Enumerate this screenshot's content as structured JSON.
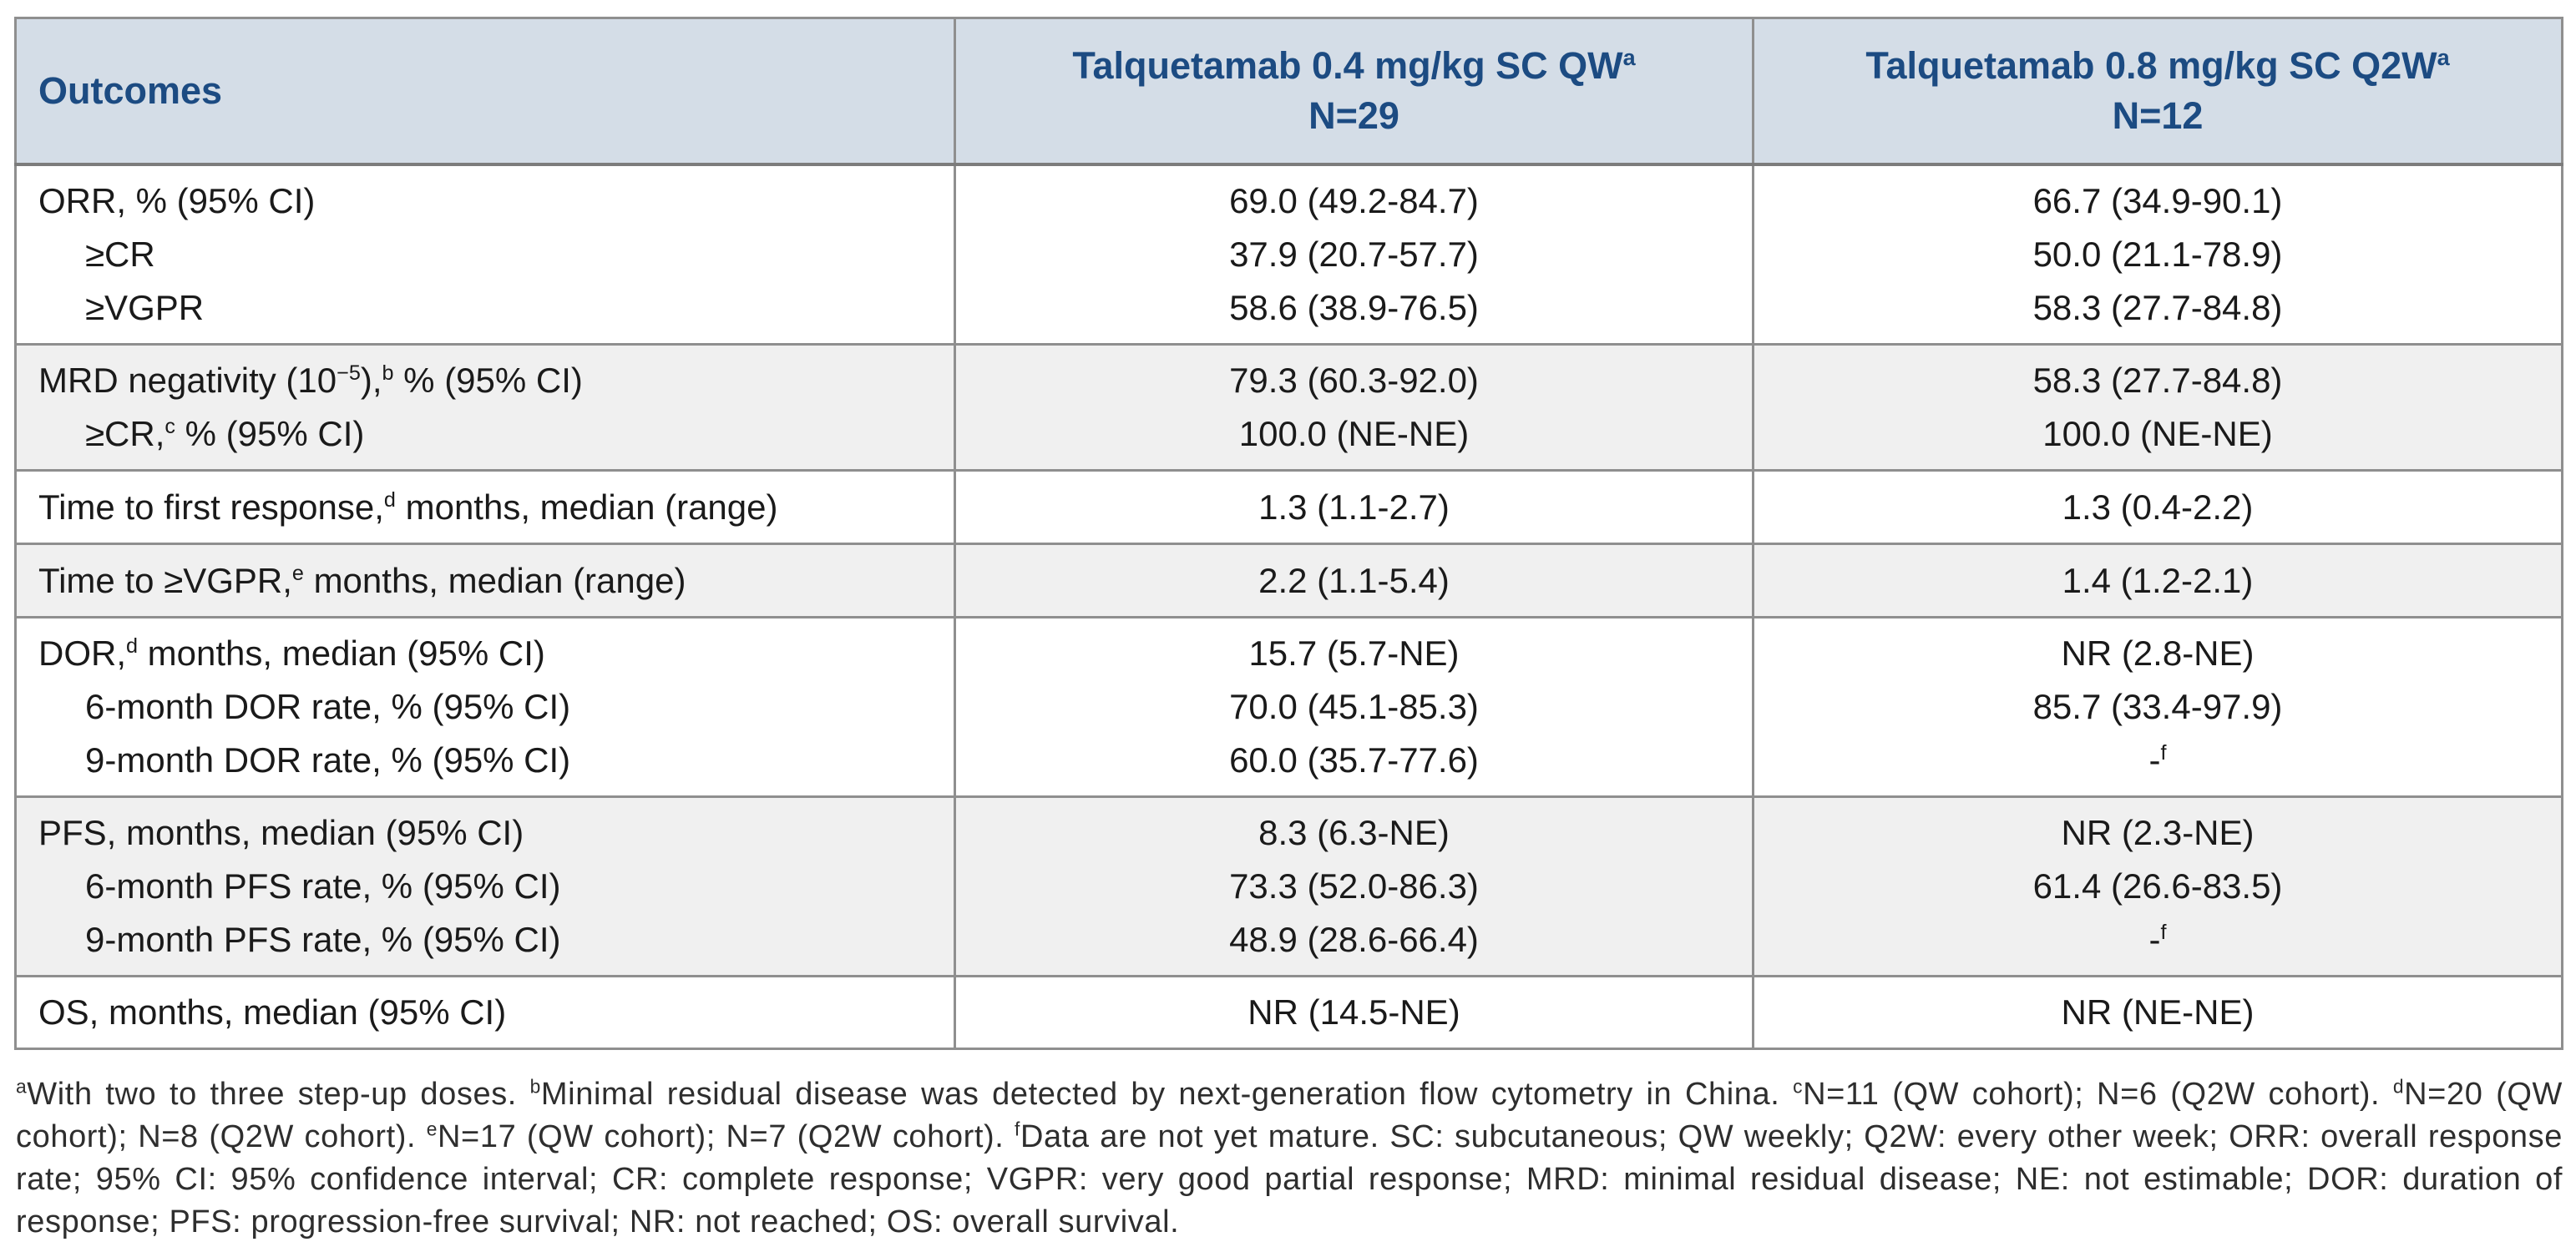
{
  "colors": {
    "header_bg": "#d4dde7",
    "header_text": "#1c4b82",
    "row_alt_bg": "#f0f0f0",
    "border": "#8f8f8f",
    "body_text": "#1a1a1a"
  },
  "table": {
    "columns": [
      {
        "label": "Outcomes"
      },
      {
        "line1_p1": "Talquetamab 0.4 mg/kg SC QW",
        "line1_s1": "a",
        "line2": "N=29"
      },
      {
        "line1_p1": "Talquetamab 0.8 mg/kg SC Q2W",
        "line1_s1": "a",
        "line2": "N=12"
      }
    ],
    "rows": [
      {
        "label": [
          {
            "p1": "ORR, % (95% CI)"
          },
          {
            "p1": "≥CR"
          },
          {
            "p1": "≥VGPR"
          }
        ],
        "qw": [
          {
            "p1": "69.0 (49.2-84.7)"
          },
          {
            "p1": "37.9 (20.7-57.7)"
          },
          {
            "p1": "58.6 (38.9-76.5)"
          }
        ],
        "q2w": [
          {
            "p1": "66.7 (34.9-90.1)"
          },
          {
            "p1": "50.0 (21.1-78.9)"
          },
          {
            "p1": "58.3 (27.7-84.8)"
          }
        ]
      },
      {
        "label": [
          {
            "p1": "MRD negativity (10",
            "s1": "−5",
            "p2": "),",
            "s2": "b",
            "p3": " % (95% CI)"
          },
          {
            "p1": "≥CR,",
            "s1": "c",
            "p2": " % (95% CI)"
          }
        ],
        "qw": [
          {
            "p1": "79.3 (60.3-92.0)"
          },
          {
            "p1": "100.0 (NE-NE)"
          }
        ],
        "q2w": [
          {
            "p1": "58.3 (27.7-84.8)"
          },
          {
            "p1": "100.0 (NE-NE)"
          }
        ]
      },
      {
        "label": [
          {
            "p1": "Time to first response,",
            "s1": "d",
            "p2": " months, median (range)"
          }
        ],
        "qw": [
          {
            "p1": "1.3 (1.1-2.7)"
          }
        ],
        "q2w": [
          {
            "p1": "1.3 (0.4-2.2)"
          }
        ]
      },
      {
        "label": [
          {
            "p1": "Time to ≥VGPR,",
            "s1": "e",
            "p2": " months, median (range)"
          }
        ],
        "qw": [
          {
            "p1": "2.2 (1.1-5.4)"
          }
        ],
        "q2w": [
          {
            "p1": "1.4 (1.2-2.1)"
          }
        ]
      },
      {
        "label": [
          {
            "p1": "DOR,",
            "s1": "d",
            "p2": " months, median (95% CI)"
          },
          {
            "p1": "6-month DOR rate, % (95% CI)"
          },
          {
            "p1": "9-month DOR rate, % (95% CI)"
          }
        ],
        "qw": [
          {
            "p1": "15.7 (5.7-NE)"
          },
          {
            "p1": "70.0 (45.1-85.3)"
          },
          {
            "p1": "60.0 (35.7-77.6)"
          }
        ],
        "q2w": [
          {
            "p1": "NR (2.8-NE)"
          },
          {
            "p1": "85.7 (33.4-97.9)"
          },
          {
            "p1": "-",
            "s1": "f"
          }
        ]
      },
      {
        "label": [
          {
            "p1": "PFS, months, median (95% CI)"
          },
          {
            "p1": "6-month PFS rate, % (95% CI)"
          },
          {
            "p1": "9-month PFS rate, % (95% CI)"
          }
        ],
        "qw": [
          {
            "p1": "8.3 (6.3-NE)"
          },
          {
            "p1": "73.3 (52.0-86.3)"
          },
          {
            "p1": "48.9 (28.6-66.4)"
          }
        ],
        "q2w": [
          {
            "p1": "NR (2.3-NE)"
          },
          {
            "p1": "61.4 (26.6-83.5)"
          },
          {
            "p1": "-",
            "s1": "f"
          }
        ]
      },
      {
        "label": [
          {
            "p1": "OS, months, median (95% CI)"
          }
        ],
        "qw": [
          {
            "p1": "NR (14.5-NE)"
          }
        ],
        "q2w": [
          {
            "p1": "NR (NE-NE)"
          }
        ]
      }
    ]
  },
  "footnote": {
    "segments": [
      {
        "s": "a",
        "t": "With two to three step-up doses. "
      },
      {
        "s": "b",
        "t": "Minimal residual disease was detected by next-generation flow cytometry in China. "
      },
      {
        "s": "c",
        "t": "N=11 (QW cohort); N=6 (Q2W cohort). "
      },
      {
        "s": "d",
        "t": "N=20 (QW cohort); N=8 (Q2W cohort). "
      },
      {
        "s": "e",
        "t": "N=17 (QW cohort); N=7 (Q2W cohort). "
      },
      {
        "s": "f",
        "t": "Data are not yet mature. SC: subcutaneous; QW weekly; Q2W: every other week; ORR: overall response rate; 95% CI: 95% confidence interval; CR: complete response; VGPR: very good partial response; MRD: minimal residual disease; NE: not estimable; DOR: duration of response; PFS: progression-free survival; NR: not reached; OS: overall survival."
      }
    ]
  }
}
